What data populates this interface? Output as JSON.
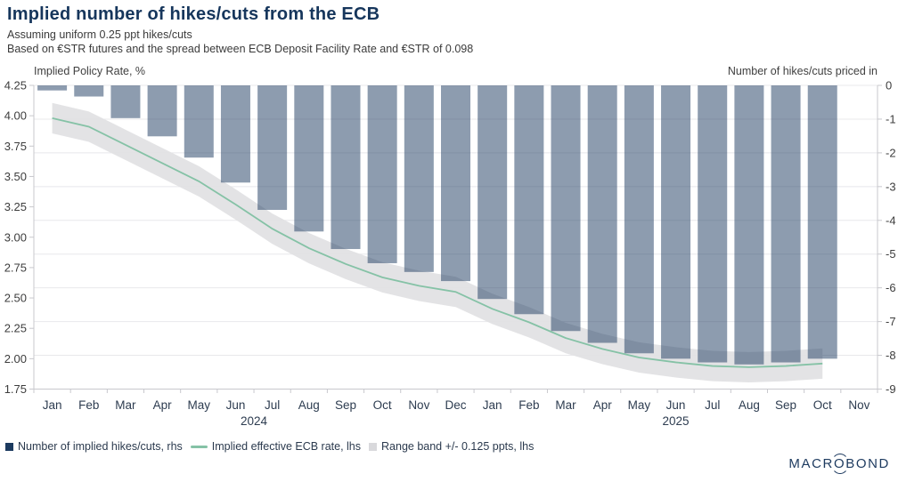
{
  "header": {
    "title": "Implied number of hikes/cuts from the ECB",
    "subtitle_line1": "Assuming uniform 0.25 ppt hikes/cuts",
    "subtitle_line2": "Based on €STR futures and the spread between ECB Deposit Facility Rate and €STR of 0.098"
  },
  "axis_corner_labels": {
    "left": "Implied Policy Rate, %",
    "right": "Number of hikes/cuts priced in"
  },
  "legend": {
    "items": [
      {
        "swatch": "bar",
        "label": "Number of implied hikes/cuts, rhs"
      },
      {
        "swatch": "line",
        "label": "Implied effective ECB rate, lhs"
      },
      {
        "swatch": "band",
        "label": "Range band +/- 0.125 ppts, lhs"
      }
    ]
  },
  "branding": {
    "part1": "MACR",
    "o": "O",
    "part2": "BOND"
  },
  "colors": {
    "title": "#16365c",
    "bar_fill": "rgba(28,58,95,0.5)",
    "bar_legend": "#1c3a5f",
    "line": "#85c2a6",
    "band_fill": "#e2e2e4",
    "band_legend": "#d9d9dc",
    "gridline": "#e8e8eb",
    "axis": "#c8c8cd",
    "tick_text": "#3d3d3d",
    "month_text": "#2d3c50"
  },
  "chart_data": {
    "type": "bar",
    "title": "Implied number of hikes/cuts from the ECB",
    "subtitle": [
      "Assuming uniform 0.25 ppt hikes/cuts",
      "Based on €STR futures and the spread between ECB Deposit Facility Rate and €STR of 0.098"
    ],
    "grid": "horizontal gridlines at right-axis integer ticks",
    "legend_position": "bottom-left",
    "months": [
      "Jan",
      "Feb",
      "Mar",
      "Apr",
      "May",
      "Jun",
      "Jul",
      "Aug",
      "Sep",
      "Oct",
      "Nov",
      "Dec",
      "Jan",
      "Feb",
      "Mar",
      "Apr",
      "May",
      "Jun",
      "Jul",
      "Aug",
      "Sep",
      "Oct",
      "Nov"
    ],
    "years": [
      {
        "label": "2024",
        "start": 0,
        "end": 11
      },
      {
        "label": "2025",
        "start": 12,
        "end": 22
      }
    ],
    "lhs_axis": {
      "label": "Implied Policy Rate, %",
      "min": 1.75,
      "max": 4.25,
      "ticks": [
        "4.25",
        "4.00",
        "3.75",
        "3.50",
        "3.25",
        "3.00",
        "2.75",
        "2.50",
        "2.25",
        "2.00",
        "1.75"
      ]
    },
    "rhs_axis": {
      "label": "Number of hikes/cuts priced in",
      "min": -9,
      "max": 0,
      "ticks": [
        "0",
        "-1",
        "-2",
        "-3",
        "-4",
        "-5",
        "-6",
        "-7",
        "-8",
        "-9"
      ]
    },
    "series": [
      {
        "name": "Number of implied hikes/cuts, rhs",
        "type": "bar",
        "axis": "rhs",
        "values": [
          -0.15,
          -0.33,
          -0.97,
          -1.51,
          -2.14,
          -2.88,
          -3.69,
          -4.33,
          -4.85,
          -5.27,
          -5.53,
          -5.8,
          -6.33,
          -6.78,
          -7.28,
          -7.63,
          -7.94,
          -8.1,
          -8.21,
          -8.27,
          -8.21,
          -8.1,
          null
        ]
      },
      {
        "name": "Implied effective ECB rate, lhs",
        "type": "line",
        "axis": "lhs",
        "values": [
          3.98,
          3.91,
          3.76,
          3.61,
          3.46,
          3.27,
          3.07,
          2.91,
          2.78,
          2.67,
          2.6,
          2.55,
          2.41,
          2.3,
          2.17,
          2.08,
          2.01,
          1.97,
          1.94,
          1.93,
          1.94,
          1.96,
          null
        ]
      },
      {
        "name": "Range band +/- 0.125 ppts, lhs",
        "type": "band",
        "axis": "lhs",
        "center_series": 1,
        "half_width": 0.125
      }
    ]
  }
}
